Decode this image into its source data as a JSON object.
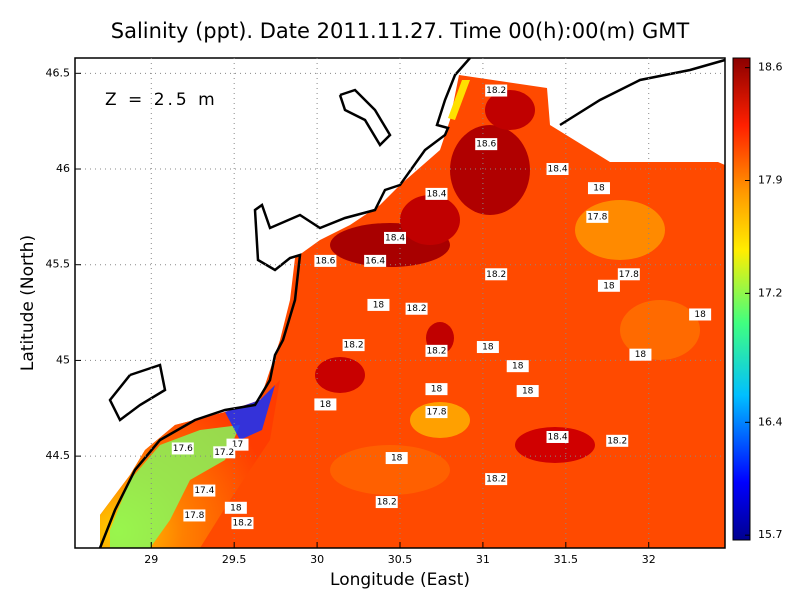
{
  "chart_data": {
    "type": "contour_map",
    "title": "Salinity (ppt). Date 2011.11.27. Time 00(h):00(m) GMT",
    "annotation": "Z = 2.5 m",
    "x_label": "Longitude (East)",
    "y_label": "Latitude (North)",
    "xlim": [
      28.54,
      32.46
    ],
    "ylim": [
      44.02,
      46.58
    ],
    "xticks": [
      29,
      29.5,
      30,
      30.5,
      31,
      31.5,
      32
    ],
    "yticks": [
      44.5,
      45,
      45.5,
      46,
      46.5
    ],
    "grid": true,
    "colorbar_lim": [
      15.67,
      18.66
    ],
    "colorbar_ticks": [
      15.7,
      16.4,
      17.2,
      17.9,
      18.6
    ],
    "contour_labels": [
      {
        "value": 18.2,
        "lon": 31.08,
        "lat": 46.41
      },
      {
        "value": 18.6,
        "lon": 31.02,
        "lat": 46.13
      },
      {
        "value": 18.4,
        "lon": 31.45,
        "lat": 46.0
      },
      {
        "value": 18.4,
        "lon": 30.72,
        "lat": 45.87
      },
      {
        "value": 18,
        "lon": 31.7,
        "lat": 45.9
      },
      {
        "value": 17.8,
        "lon": 31.69,
        "lat": 45.75
      },
      {
        "value": 18.4,
        "lon": 30.47,
        "lat": 45.64
      },
      {
        "value": 18.6,
        "lon": 30.05,
        "lat": 45.52
      },
      {
        "value": 16.4,
        "lon": 30.35,
        "lat": 45.52
      },
      {
        "value": 18.2,
        "lon": 31.08,
        "lat": 45.45
      },
      {
        "value": 17.8,
        "lon": 31.88,
        "lat": 45.45
      },
      {
        "value": 18,
        "lon": 31.76,
        "lat": 45.39
      },
      {
        "value": 18,
        "lon": 30.37,
        "lat": 45.29
      },
      {
        "value": 18.2,
        "lon": 30.6,
        "lat": 45.27
      },
      {
        "value": 18,
        "lon": 32.31,
        "lat": 45.24
      },
      {
        "value": 18.2,
        "lon": 30.22,
        "lat": 45.08
      },
      {
        "value": 18.2,
        "lon": 30.72,
        "lat": 45.05
      },
      {
        "value": 18,
        "lon": 31.03,
        "lat": 45.07
      },
      {
        "value": 18,
        "lon": 31.95,
        "lat": 45.03
      },
      {
        "value": 18,
        "lon": 31.21,
        "lat": 44.97
      },
      {
        "value": 18,
        "lon": 30.72,
        "lat": 44.85
      },
      {
        "value": 18,
        "lon": 31.27,
        "lat": 44.84
      },
      {
        "value": 18,
        "lon": 30.05,
        "lat": 44.77
      },
      {
        "value": 17.8,
        "lon": 30.72,
        "lat": 44.73
      },
      {
        "value": 17,
        "lon": 29.52,
        "lat": 44.56
      },
      {
        "value": 18.4,
        "lon": 31.45,
        "lat": 44.6
      },
      {
        "value": 18.2,
        "lon": 31.81,
        "lat": 44.58
      },
      {
        "value": 17.6,
        "lon": 29.19,
        "lat": 44.54
      },
      {
        "value": 17.2,
        "lon": 29.44,
        "lat": 44.52
      },
      {
        "value": 18,
        "lon": 30.48,
        "lat": 44.49
      },
      {
        "value": 18.2,
        "lon": 31.08,
        "lat": 44.38
      },
      {
        "value": 17.4,
        "lon": 29.32,
        "lat": 44.32
      },
      {
        "value": 18,
        "lon": 29.51,
        "lat": 44.23
      },
      {
        "value": 18.2,
        "lon": 30.42,
        "lat": 44.26
      },
      {
        "value": 17.8,
        "lon": 29.26,
        "lat": 44.19
      },
      {
        "value": 18.2,
        "lon": 29.55,
        "lat": 44.15
      }
    ]
  }
}
